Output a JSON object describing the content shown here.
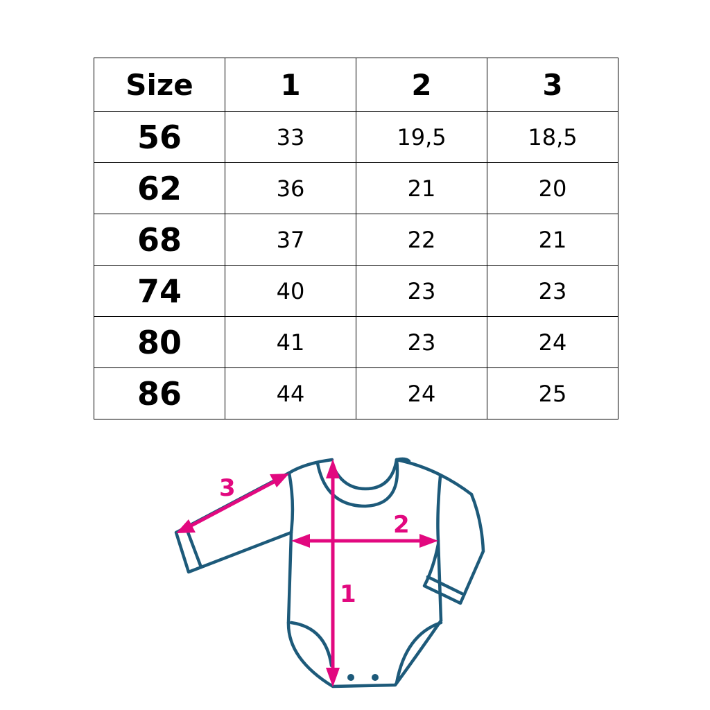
{
  "table": {
    "headers": [
      "Size",
      "1",
      "2",
      "3"
    ],
    "rows": [
      [
        "56",
        "33",
        "19,5",
        "18,5"
      ],
      [
        "62",
        "36",
        "21",
        "20"
      ],
      [
        "68",
        "37",
        "22",
        "21"
      ],
      [
        "74",
        "40",
        "23",
        "23"
      ],
      [
        "80",
        "41",
        "23",
        "24"
      ],
      [
        "86",
        "44",
        "24",
        "25"
      ]
    ]
  },
  "diagram": {
    "labels": {
      "length": "1",
      "chest": "2",
      "sleeve": "3"
    },
    "colors": {
      "outline": "#1d5a7a",
      "arrow": "#e2087f"
    }
  }
}
